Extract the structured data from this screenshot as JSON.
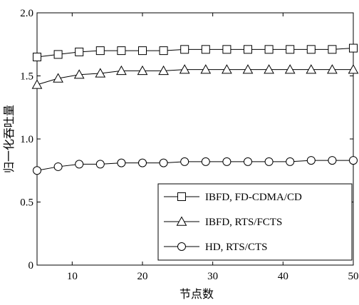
{
  "chart_data": {
    "type": "line",
    "title": "",
    "xlabel": "节点数",
    "ylabel": "归一化吞吐量",
    "xlim": [
      5,
      50
    ],
    "ylim": [
      0,
      2.0
    ],
    "x_ticks": [
      10,
      20,
      30,
      40,
      50
    ],
    "y_ticks": [
      0,
      0.5,
      1.0,
      1.5,
      2.0
    ],
    "x_tick_labels": [
      "10",
      "20",
      "30",
      "40",
      "50"
    ],
    "y_tick_labels": [
      "0",
      "0.5",
      "1.0",
      "1.5",
      "2.0"
    ],
    "grid": false,
    "legend_position": "bottom-right",
    "x": [
      5,
      8,
      11,
      14,
      17,
      20,
      23,
      26,
      29,
      32,
      35,
      38,
      41,
      44,
      47,
      50
    ],
    "series": [
      {
        "name": "IBFD, FD-CDMA/CD",
        "marker": "square",
        "values": [
          1.65,
          1.67,
          1.69,
          1.7,
          1.7,
          1.7,
          1.7,
          1.71,
          1.71,
          1.71,
          1.71,
          1.71,
          1.71,
          1.71,
          1.71,
          1.72
        ]
      },
      {
        "name": "IBFD, RTS/FCTS",
        "marker": "triangle",
        "values": [
          1.43,
          1.48,
          1.51,
          1.52,
          1.54,
          1.54,
          1.54,
          1.55,
          1.55,
          1.55,
          1.55,
          1.55,
          1.55,
          1.55,
          1.55,
          1.55
        ]
      },
      {
        "name": "HD, RTS/CTS",
        "marker": "circle",
        "values": [
          0.75,
          0.78,
          0.8,
          0.8,
          0.81,
          0.81,
          0.81,
          0.82,
          0.82,
          0.82,
          0.82,
          0.82,
          0.82,
          0.83,
          0.83,
          0.83
        ]
      }
    ]
  }
}
